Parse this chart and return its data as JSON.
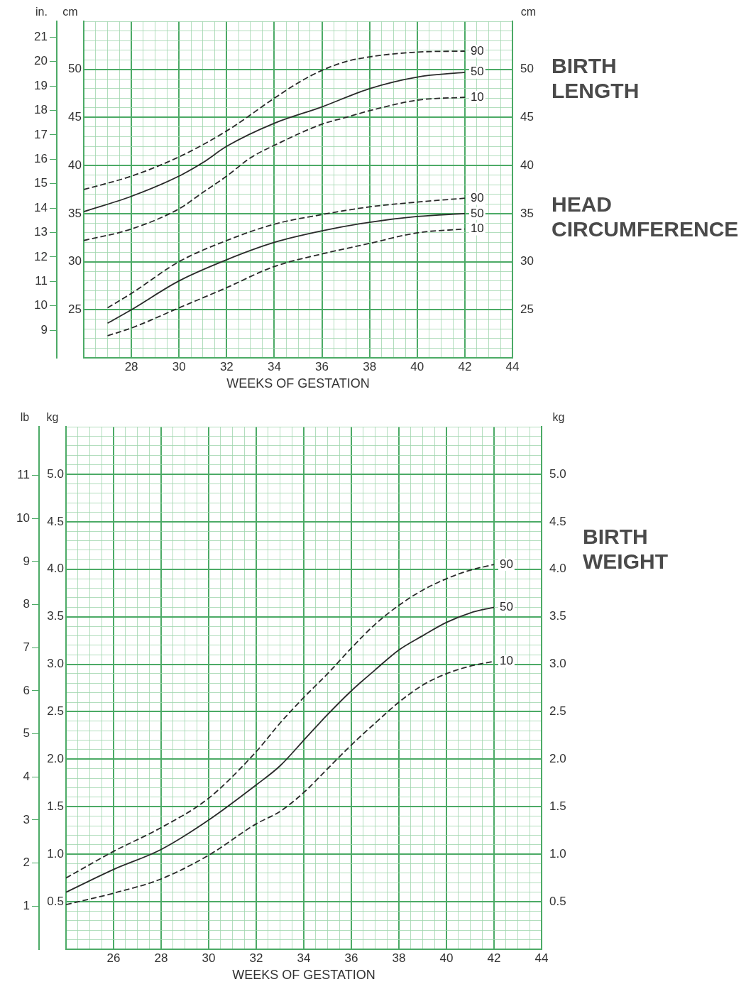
{
  "chart_data": [
    {
      "type": "line",
      "xlabel": "WEEKS OF GESTATION",
      "ylabel": "cm",
      "y2label": "cm",
      "y3label": "in.",
      "grid": true,
      "legend": false,
      "xlim": [
        26,
        44
      ],
      "xticks": [
        {
          "value": 26,
          "label": null
        },
        {
          "value": 26.5,
          "label": null
        },
        {
          "value": 27,
          "label": null
        },
        {
          "value": 27.5,
          "label": null
        },
        28,
        {
          "value": 28.5,
          "label": null
        },
        {
          "value": 29,
          "label": null
        },
        {
          "value": 29.5,
          "label": null
        },
        30,
        {
          "value": 30.5,
          "label": null
        },
        {
          "value": 31,
          "label": null
        },
        {
          "value": 31.5,
          "label": null
        },
        32,
        {
          "value": 32.5,
          "label": null
        },
        {
          "value": 33,
          "label": null
        },
        {
          "value": 33.5,
          "label": null
        },
        34,
        {
          "value": 34.5,
          "label": null
        },
        {
          "value": 35,
          "label": null
        },
        {
          "value": 35.5,
          "label": null
        },
        36,
        {
          "value": 36.5,
          "label": null
        },
        {
          "value": 37,
          "label": null
        },
        {
          "value": 37.5,
          "label": null
        },
        38,
        {
          "value": 38.5,
          "label": null
        },
        {
          "value": 39,
          "label": null
        },
        {
          "value": 39.5,
          "label": null
        },
        40,
        {
          "value": 40.5,
          "label": null
        },
        {
          "value": 41,
          "label": null
        },
        {
          "value": 41.5,
          "label": null
        },
        42,
        {
          "value": 42.5,
          "label": null
        },
        {
          "value": 43,
          "label": null
        },
        {
          "value": 43.5,
          "label": null
        },
        44
      ],
      "ylim": [
        20,
        55
      ],
      "yticks": [
        {
          "value": 20,
          "label": null
        },
        {
          "value": 21,
          "label": null
        },
        {
          "value": 22,
          "label": null
        },
        {
          "value": 23,
          "label": null
        },
        {
          "value": 24,
          "label": null
        },
        25,
        {
          "value": 26,
          "label": null
        },
        {
          "value": 27,
          "label": null
        },
        {
          "value": 28,
          "label": null
        },
        {
          "value": 29,
          "label": null
        },
        30,
        {
          "value": 31,
          "label": null
        },
        {
          "value": 32,
          "label": null
        },
        {
          "value": 33,
          "label": null
        },
        {
          "value": 34,
          "label": null
        },
        35,
        {
          "value": 36,
          "label": null
        },
        {
          "value": 37,
          "label": null
        },
        {
          "value": 38,
          "label": null
        },
        {
          "value": 39,
          "label": null
        },
        40,
        {
          "value": 41,
          "label": null
        },
        {
          "value": 42,
          "label": null
        },
        {
          "value": 43,
          "label": null
        },
        {
          "value": 44,
          "label": null
        },
        45,
        {
          "value": 46,
          "label": null
        },
        {
          "value": 47,
          "label": null
        },
        {
          "value": 48,
          "label": null
        },
        {
          "value": 49,
          "label": null
        },
        50,
        {
          "value": 51,
          "label": null
        },
        {
          "value": 52,
          "label": null
        },
        {
          "value": 53,
          "label": null
        },
        {
          "value": 54,
          "label": null
        },
        {
          "value": 55,
          "label": null
        }
      ],
      "y2lim": [
        20,
        55
      ],
      "y2ticks": [
        25,
        30,
        35,
        40,
        45,
        50
      ],
      "y3lim": [
        7.87,
        21.65
      ],
      "y3ticks": [
        9,
        10,
        11,
        12,
        13,
        14,
        15,
        16,
        17,
        18,
        19,
        20,
        21
      ],
      "annotations": [
        "BIRTH LENGTH",
        "HEAD CIRCUMFERENCE"
      ],
      "series": [
        {
          "name": "90",
          "color": "#2a2a2a",
          "line_style": "dashed",
          "x": [
            26,
            28,
            30,
            32,
            34,
            35,
            36,
            37,
            38,
            40,
            42
          ],
          "values": [
            37.5,
            38.9,
            40.9,
            43.6,
            47.0,
            48.6,
            49.9,
            50.8,
            51.3,
            51.8,
            51.9
          ]
        },
        {
          "name": "50",
          "color": "#2a2a2a",
          "line_style": "solid",
          "x": [
            26,
            28,
            30,
            31,
            32,
            34,
            36,
            38,
            40,
            42
          ],
          "values": [
            35.2,
            36.8,
            38.9,
            40.3,
            42.0,
            44.4,
            46.1,
            48.0,
            49.2,
            49.7
          ]
        },
        {
          "name": "10",
          "color": "#2a2a2a",
          "line_style": "dashed",
          "x": [
            26,
            28,
            30,
            31,
            32,
            33,
            34,
            36,
            37,
            38,
            40,
            42
          ],
          "values": [
            32.2,
            33.4,
            35.5,
            37.2,
            38.9,
            40.8,
            42.1,
            44.3,
            45.0,
            45.7,
            46.8,
            47.1
          ]
        },
        {
          "name": "90",
          "color": "#2a2a2a",
          "line_style": "dashed",
          "x": [
            27,
            28,
            30,
            32,
            34,
            36,
            38,
            40,
            42
          ],
          "values": [
            25.2,
            26.7,
            30.0,
            32.2,
            33.9,
            34.9,
            35.7,
            36.2,
            36.6
          ]
        },
        {
          "name": "50",
          "color": "#2a2a2a",
          "line_style": "solid",
          "x": [
            27,
            28,
            30,
            32,
            34,
            36,
            38,
            40,
            42
          ],
          "values": [
            23.6,
            25.0,
            28.0,
            30.2,
            32.0,
            33.2,
            34.1,
            34.7,
            35.0
          ]
        },
        {
          "name": "10",
          "color": "#2a2a2a",
          "line_style": "dashed",
          "x": [
            27,
            28,
            30,
            32,
            34,
            36,
            38,
            40,
            42
          ],
          "values": [
            22.3,
            23.1,
            25.2,
            27.3,
            29.5,
            30.8,
            31.9,
            33.0,
            33.4
          ]
        }
      ]
    },
    {
      "type": "line",
      "xlabel": "WEEKS OF GESTATION",
      "ylabel": "kg",
      "y2label": "kg",
      "y3label": "lb",
      "grid": true,
      "legend": false,
      "xlim": [
        24,
        44
      ],
      "xticks": [
        {
          "value": 24,
          "label": null
        },
        {
          "value": 24.5,
          "label": null
        },
        {
          "value": 25,
          "label": null
        },
        {
          "value": 25.5,
          "label": null
        },
        26,
        {
          "value": 26.5,
          "label": null
        },
        {
          "value": 27,
          "label": null
        },
        {
          "value": 27.5,
          "label": null
        },
        28,
        {
          "value": 28.5,
          "label": null
        },
        {
          "value": 29,
          "label": null
        },
        {
          "value": 29.5,
          "label": null
        },
        30,
        {
          "value": 30.5,
          "label": null
        },
        {
          "value": 31,
          "label": null
        },
        {
          "value": 31.5,
          "label": null
        },
        32,
        {
          "value": 32.5,
          "label": null
        },
        {
          "value": 33,
          "label": null
        },
        {
          "value": 33.5,
          "label": null
        },
        34,
        {
          "value": 34.5,
          "label": null
        },
        {
          "value": 35,
          "label": null
        },
        {
          "value": 35.5,
          "label": null
        },
        36,
        {
          "value": 36.5,
          "label": null
        },
        {
          "value": 37,
          "label": null
        },
        {
          "value": 37.5,
          "label": null
        },
        38,
        {
          "value": 38.5,
          "label": null
        },
        {
          "value": 39,
          "label": null
        },
        {
          "value": 39.5,
          "label": null
        },
        40,
        {
          "value": 40.5,
          "label": null
        },
        {
          "value": 41,
          "label": null
        },
        {
          "value": 41.5,
          "label": null
        },
        42,
        {
          "value": 42.5,
          "label": null
        },
        {
          "value": 43,
          "label": null
        },
        {
          "value": 43.5,
          "label": null
        },
        44
      ],
      "ylim": [
        0,
        5.5
      ],
      "yticks": [
        {
          "value": 0,
          "label": null
        },
        {
          "value": 0.1,
          "label": null
        },
        {
          "value": 0.2,
          "label": null
        },
        {
          "value": 0.3,
          "label": null
        },
        {
          "value": 0.4,
          "label": null
        },
        0.5,
        {
          "value": 0.6,
          "label": null
        },
        {
          "value": 0.7,
          "label": null
        },
        {
          "value": 0.8,
          "label": null
        },
        {
          "value": 0.9,
          "label": null
        },
        {
          "value": 1,
          "label": "1.0"
        },
        {
          "value": 1.1,
          "label": null
        },
        {
          "value": 1.2,
          "label": null
        },
        {
          "value": 1.3,
          "label": null
        },
        {
          "value": 1.4,
          "label": null
        },
        1.5,
        {
          "value": 1.6,
          "label": null
        },
        {
          "value": 1.7,
          "label": null
        },
        {
          "value": 1.8,
          "label": null
        },
        {
          "value": 1.9,
          "label": null
        },
        {
          "value": 2,
          "label": "2.0"
        },
        {
          "value": 2.1,
          "label": null
        },
        {
          "value": 2.2,
          "label": null
        },
        {
          "value": 2.3,
          "label": null
        },
        {
          "value": 2.4,
          "label": null
        },
        2.5,
        {
          "value": 2.6,
          "label": null
        },
        {
          "value": 2.7,
          "label": null
        },
        {
          "value": 2.8,
          "label": null
        },
        {
          "value": 2.9,
          "label": null
        },
        {
          "value": 3,
          "label": "3.0"
        },
        {
          "value": 3.1,
          "label": null
        },
        {
          "value": 3.2,
          "label": null
        },
        {
          "value": 3.3,
          "label": null
        },
        {
          "value": 3.4,
          "label": null
        },
        3.5,
        {
          "value": 3.6,
          "label": null
        },
        {
          "value": 3.7,
          "label": null
        },
        {
          "value": 3.8,
          "label": null
        },
        {
          "value": 3.9,
          "label": null
        },
        {
          "value": 4,
          "label": "4.0"
        },
        {
          "value": 4.1,
          "label": null
        },
        {
          "value": 4.2,
          "label": null
        },
        {
          "value": 4.3,
          "label": null
        },
        {
          "value": 4.4,
          "label": null
        },
        4.5,
        {
          "value": 4.6,
          "label": null
        },
        {
          "value": 4.7,
          "label": null
        },
        {
          "value": 4.8,
          "label": null
        },
        {
          "value": 4.9,
          "label": null
        },
        {
          "value": 5,
          "label": "5.0"
        },
        {
          "value": 5.1,
          "label": null
        },
        {
          "value": 5.2,
          "label": null
        },
        {
          "value": 5.3,
          "label": null
        },
        {
          "value": 5.4,
          "label": null
        },
        {
          "value": 5.5,
          "label": null
        }
      ],
      "y2lim": [
        0,
        5.5
      ],
      "y2ticks": [
        0.5,
        {
          "value": 1,
          "label": "1.0"
        },
        1.5,
        {
          "value": 2,
          "label": "2.0"
        },
        2.5,
        {
          "value": 3,
          "label": "3.0"
        },
        3.5,
        {
          "value": 4,
          "label": "4.0"
        },
        4.5,
        {
          "value": 5,
          "label": "5.0"
        }
      ],
      "y3lim": [
        0,
        12.13
      ],
      "y3ticks": [
        1,
        2,
        3,
        4,
        5,
        6,
        7,
        8,
        9,
        10,
        11
      ],
      "annotations": [
        "BIRTH WEIGHT"
      ],
      "series": [
        {
          "name": "90",
          "color": "#2a2a2a",
          "line_style": "dashed",
          "x": [
            24,
            26,
            28,
            30,
            32,
            33,
            34,
            35,
            36,
            37,
            38,
            39,
            40,
            41,
            42
          ],
          "values": [
            0.75,
            1.03,
            1.28,
            1.59,
            2.08,
            2.38,
            2.65,
            2.9,
            3.17,
            3.42,
            3.62,
            3.78,
            3.9,
            3.99,
            4.05
          ]
        },
        {
          "name": "50",
          "color": "#2a2a2a",
          "line_style": "solid",
          "x": [
            24,
            26,
            28,
            30,
            32,
            33,
            34,
            35,
            36,
            37,
            38,
            39,
            40,
            41,
            42
          ],
          "values": [
            0.6,
            0.84,
            1.05,
            1.36,
            1.73,
            1.93,
            2.2,
            2.47,
            2.72,
            2.94,
            3.15,
            3.3,
            3.44,
            3.54,
            3.6
          ]
        },
        {
          "name": "10",
          "color": "#2a2a2a",
          "line_style": "dashed",
          "x": [
            24,
            26,
            28,
            30,
            32,
            33,
            34,
            35,
            36,
            37,
            38,
            39,
            40,
            41,
            42
          ],
          "values": [
            0.47,
            0.59,
            0.74,
            0.99,
            1.32,
            1.45,
            1.65,
            1.9,
            2.15,
            2.38,
            2.6,
            2.78,
            2.9,
            2.98,
            3.03
          ]
        }
      ]
    }
  ]
}
